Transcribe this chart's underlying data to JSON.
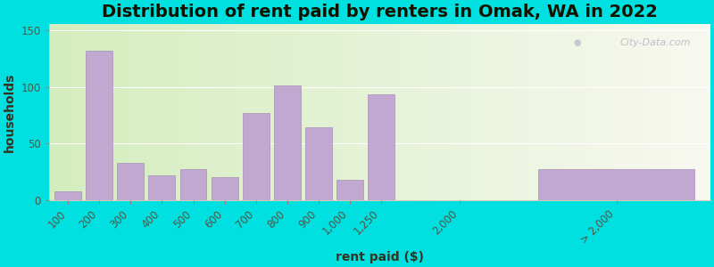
{
  "title": "Distribution of rent paid by renters in Omak, WA in 2022",
  "xlabel": "rent paid ($)",
  "ylabel": "households",
  "background_outer": "#00e0e0",
  "bar_color": "#c0a8d0",
  "bar_edge_color": "#a080b0",
  "categories": [
    "100",
    "200",
    "300",
    "400",
    "500",
    "600",
    "700",
    "800",
    "900",
    "1,000",
    "1,250",
    "2,000",
    "> 2,000"
  ],
  "values": [
    8,
    132,
    33,
    22,
    27,
    20,
    77,
    101,
    64,
    18,
    93,
    0,
    27
  ],
  "ylim": [
    0,
    155
  ],
  "yticks": [
    0,
    50,
    100,
    150
  ],
  "title_fontsize": 14,
  "label_fontsize": 10,
  "tick_fontsize": 8.5,
  "watermark_text": "City-Data.com",
  "x_regular": [
    0,
    1,
    2,
    3,
    4,
    5,
    6,
    7,
    8,
    9,
    10
  ],
  "x_2000": 12.5,
  "x_gt2000_center": 17.5,
  "x_gt2000_width": 5.0,
  "xlim_min": -0.6,
  "xlim_max": 20.5
}
